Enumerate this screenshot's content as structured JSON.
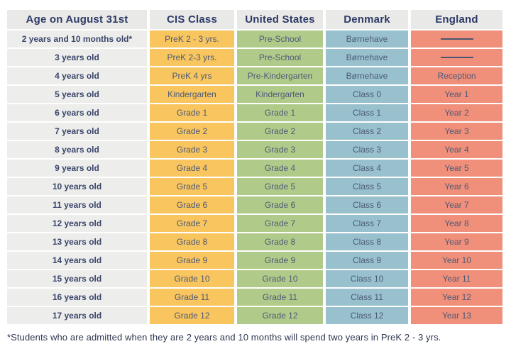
{
  "chart_data": {
    "type": "table",
    "columns": [
      "Age on August 31st",
      "CIS Class",
      "United States",
      "Denmark",
      "England"
    ],
    "column_keys": [
      "age",
      "cis-class",
      "united-states",
      "denmark",
      "england"
    ],
    "rows": [
      [
        "2 years and 10 months old*",
        "PreK 2 - 3 yrs.",
        "Pre-School",
        "Børnehave",
        "———"
      ],
      [
        "3 years old",
        "PreK 2-3 yrs.",
        "Pre-School",
        "Børnehave",
        "———"
      ],
      [
        "4 years old",
        "PreK 4 yrs",
        "Pre-Kindergarten",
        "Børnehave",
        "Reception"
      ],
      [
        "5 years old",
        "Kindergarten",
        "Kindergarten",
        "Class 0",
        "Year 1"
      ],
      [
        "6 years old",
        "Grade 1",
        "Grade 1",
        "Class 1",
        "Year 2"
      ],
      [
        "7 years old",
        "Grade 2",
        "Grade 2",
        "Class 2",
        "Year 3"
      ],
      [
        "8 years old",
        "Grade 3",
        "Grade 3",
        "Class 3",
        "Year 4"
      ],
      [
        "9 years old",
        "Grade 4",
        "Grade 4",
        "Class 4",
        "Year 5"
      ],
      [
        "10 years old",
        "Grade 5",
        "Grade 5",
        "Class 5",
        "Year 6"
      ],
      [
        "11 years old",
        "Grade 6",
        "Grade 6",
        "Class 6",
        "Year 7"
      ],
      [
        "12 years old",
        "Grade 7",
        "Grade 7",
        "Class 7",
        "Year 8"
      ],
      [
        "13 years old",
        "Grade 8",
        "Grade 8",
        "Class 8",
        "Year 9"
      ],
      [
        "14 years old",
        "Grade 9",
        "Grade 9",
        "Class 9",
        "Year 10"
      ],
      [
        "15 years old",
        "Grade 10",
        "Grade 10",
        "Class 10",
        "Year 11"
      ],
      [
        "16 years old",
        "Grade 11",
        "Grade 11",
        "Class 11",
        "Year 12"
      ],
      [
        "17 years old",
        "Grade 12",
        "Grade 12",
        "Class 12",
        "Year 13"
      ]
    ],
    "grid": false,
    "legend_position": "none"
  },
  "colors": {
    "page_bg": "#FFFFFF",
    "header_bg": "#E9E9E7",
    "header_text": "#2D3A68",
    "age_text": "#3A466B",
    "cell_text": "#4E5A78",
    "dash": "#4A5671",
    "footnote_text": "#2F3850",
    "column_bgs": [
      "#EDEDEB",
      "#F8C55E",
      "#B0CB89",
      "#98C1CD",
      "#F08F7A"
    ]
  },
  "footnote": "*Students who are admitted when they are 2 years and 10 months will spend two years in PreK 2 - 3 yrs."
}
